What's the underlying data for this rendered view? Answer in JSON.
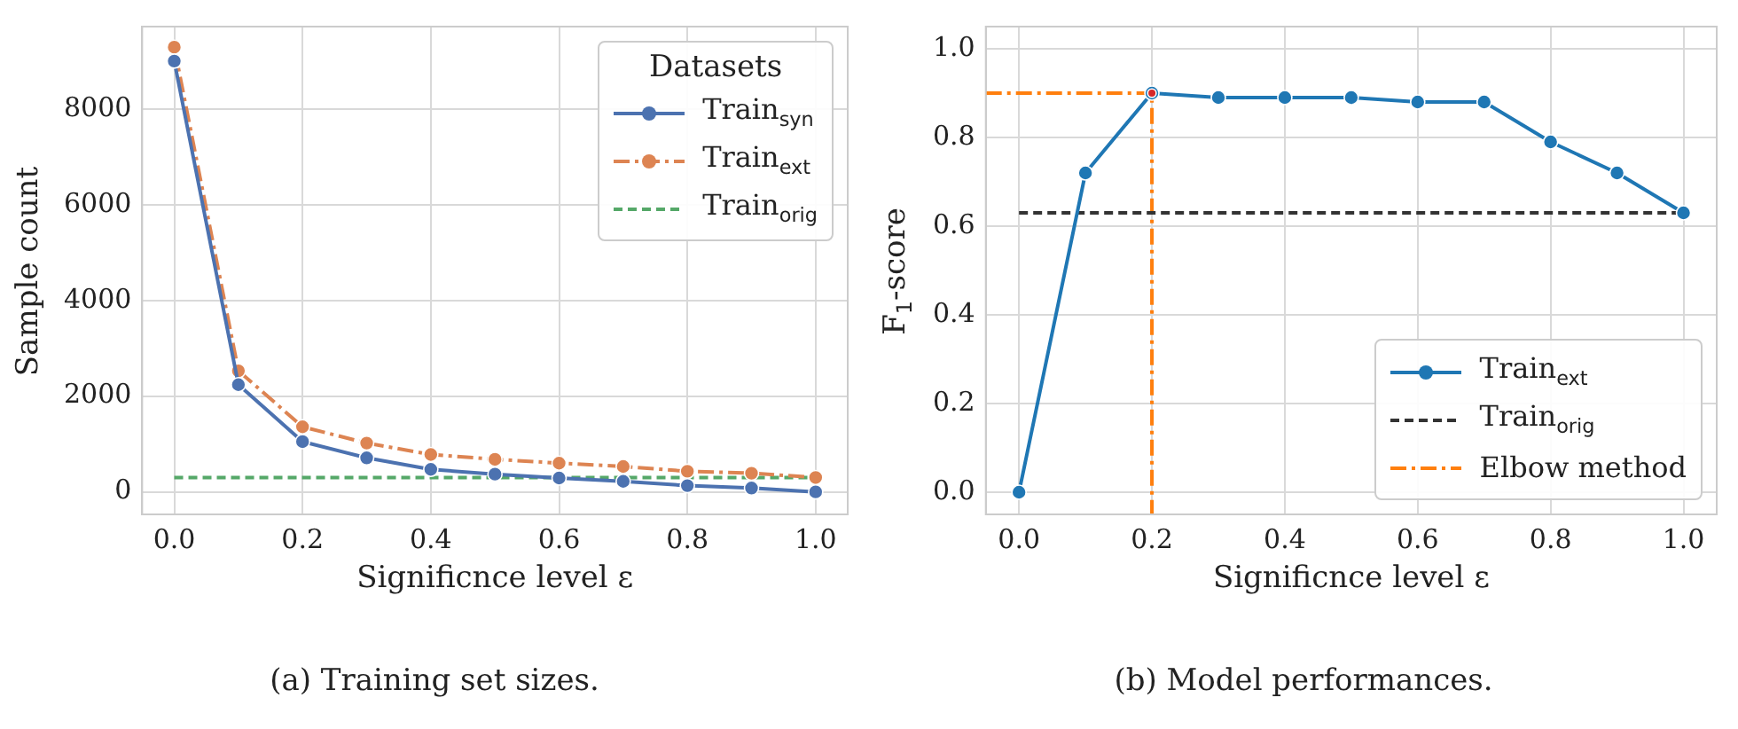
{
  "chart_data": [
    {
      "type": "line",
      "title": "(a) Training set sizes.",
      "xlabel": "Significnce level ε",
      "ylabel": "Sample count",
      "legend_title": "Datasets",
      "x": [
        0.0,
        0.1,
        0.2,
        0.3,
        0.4,
        0.5,
        0.6,
        0.7,
        0.8,
        0.9,
        1.0
      ],
      "series": [
        {
          "name": "Train$_{syn}$",
          "color": "#4c72b0",
          "marker": "circle",
          "line_style": "solid",
          "values": [
            9000,
            2240,
            1050,
            710,
            470,
            370,
            290,
            220,
            130,
            80,
            0
          ]
        },
        {
          "name": "Train$_{ext}$",
          "color": "#dd8452",
          "marker": "circle",
          "line_style": "dashdot",
          "values": [
            9290,
            2530,
            1360,
            1020,
            780,
            680,
            600,
            530,
            430,
            390,
            300
          ]
        },
        {
          "name": "Train$_{orig}$",
          "color": "#55a868",
          "marker": "none",
          "line_style": "dashed",
          "x": [
            0.0,
            1.0
          ],
          "values": [
            300,
            300
          ]
        }
      ],
      "xlim": [
        -0.05,
        1.05
      ],
      "xticks": [
        {
          "value": 0,
          "label": "0.0"
        },
        {
          "value": 0.2,
          "label": "0.2"
        },
        {
          "value": 0.4,
          "label": "0.4"
        },
        {
          "value": 0.6,
          "label": "0.6"
        },
        {
          "value": 0.8,
          "label": "0.8"
        },
        {
          "value": 1,
          "label": "1.0"
        }
      ],
      "ylim": [
        -470,
        9720
      ],
      "yticks": [
        0,
        2000,
        4000,
        6000,
        8000
      ],
      "grid": true,
      "legend": "top right"
    },
    {
      "type": "line",
      "title": "(b) Model performances.",
      "xlabel": "Significnce level ε",
      "ylabel": "F$_{1}$-score",
      "x": [
        0.0,
        0.1,
        0.2,
        0.3,
        0.4,
        0.5,
        0.6,
        0.7,
        0.8,
        0.9,
        1.0
      ],
      "series": [
        {
          "name": "Train$_{ext}$",
          "color": "#1f77b4",
          "marker": "circle",
          "line_style": "solid",
          "values": [
            0.0,
            0.72,
            0.9,
            0.89,
            0.89,
            0.89,
            0.88,
            0.88,
            0.79,
            0.72,
            0.63
          ]
        },
        {
          "name": "Train$_{orig}$",
          "color": "#333333",
          "marker": "none",
          "line_style": "dashed",
          "x": [
            0.0,
            1.0
          ],
          "values": [
            0.63,
            0.63
          ]
        },
        {
          "name": "Elbow method",
          "color": "#ff7f0e",
          "marker": "none",
          "line_style": "dashdot",
          "x": [
            -0.05,
            0.2,
            0.2
          ],
          "values": [
            0.9,
            0.9,
            -0.05
          ]
        },
        {
          "type": "scatter",
          "color": "#d62728",
          "marker": "circle",
          "x": [
            0.2
          ],
          "values": [
            0.9
          ]
        }
      ],
      "xlim": [
        -0.05,
        1.05
      ],
      "xticks": [
        {
          "value": 0,
          "label": "0.0"
        },
        {
          "value": 0.2,
          "label": "0.2"
        },
        {
          "value": 0.4,
          "label": "0.4"
        },
        {
          "value": 0.6,
          "label": "0.6"
        },
        {
          "value": 0.8,
          "label": "0.8"
        },
        {
          "value": 1,
          "label": "1.0"
        }
      ],
      "ylim": [
        -0.05,
        1.05
      ],
      "yticks": [
        {
          "value": 0,
          "label": "0.0"
        },
        {
          "value": 0.2,
          "label": "0.2"
        },
        {
          "value": 0.4,
          "label": "0.4"
        },
        {
          "value": 0.6,
          "label": "0.6"
        },
        {
          "value": 0.8,
          "label": "0.8"
        },
        {
          "value": 1,
          "label": "1.0"
        }
      ],
      "grid": true,
      "legend": "bottom right"
    }
  ]
}
